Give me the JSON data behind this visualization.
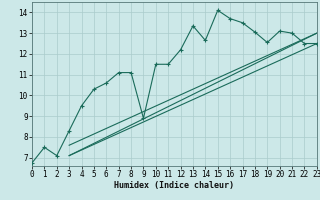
{
  "title": "",
  "xlabel": "Humidex (Indice chaleur)",
  "xlim": [
    0,
    23
  ],
  "ylim": [
    6.6,
    14.5
  ],
  "yticks": [
    7,
    8,
    9,
    10,
    11,
    12,
    13,
    14
  ],
  "xticks": [
    0,
    1,
    2,
    3,
    4,
    5,
    6,
    7,
    8,
    9,
    10,
    11,
    12,
    13,
    14,
    15,
    16,
    17,
    18,
    19,
    20,
    21,
    22,
    23
  ],
  "bg_color": "#cce8e8",
  "grid_color": "#aacccc",
  "line_color": "#1a6b5a",
  "line1_x": [
    0,
    1,
    2,
    3,
    4,
    5,
    6,
    7,
    8,
    9,
    10,
    11,
    12,
    13,
    14,
    15,
    16,
    17,
    18,
    19,
    20,
    21,
    22,
    23
  ],
  "line1_y": [
    6.75,
    7.5,
    7.1,
    8.3,
    9.5,
    10.3,
    10.6,
    11.1,
    11.1,
    8.9,
    11.5,
    11.5,
    12.2,
    13.35,
    12.65,
    14.1,
    13.7,
    13.5,
    13.05,
    12.55,
    13.1,
    13.0,
    12.5,
    12.5
  ],
  "line2_x": [
    3,
    23
  ],
  "line2_y": [
    7.1,
    12.5
  ],
  "line3_x": [
    3,
    23
  ],
  "line3_y": [
    7.6,
    13.0
  ],
  "line4_x": [
    3,
    23
  ],
  "line4_y": [
    7.1,
    13.0
  ]
}
